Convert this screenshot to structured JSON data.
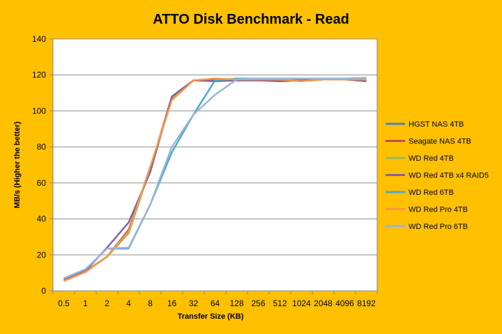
{
  "colors": {
    "background": "#FFC000",
    "plot_background": "#FFFFFF",
    "gridline": "#8C8C8C",
    "border": "#7F7F7F"
  },
  "chart_data": {
    "type": "line",
    "title": "ATTO Disk Benchmark - Read",
    "xlabel": "Transfer Size (KB)",
    "ylabel": "MB/s (Higher the better)",
    "ylim": [
      0,
      140
    ],
    "yticks": [
      0,
      20,
      40,
      60,
      80,
      100,
      120,
      140
    ],
    "grid": "horizontal",
    "legend_position": "right",
    "categories": [
      "0.5",
      "1",
      "2",
      "4",
      "8",
      "16",
      "32",
      "64",
      "128",
      "256",
      "512",
      "1024",
      "2048",
      "4096",
      "8192"
    ],
    "series": [
      {
        "name": "HGST NAS 4TB",
        "color": "#4F81BD",
        "values": [
          6,
          11,
          19,
          33,
          68,
          107,
          117,
          117,
          117,
          117,
          117,
          117,
          117.5,
          117.5,
          117.5
        ]
      },
      {
        "name": "Seagate NAS 4TB",
        "color": "#C0504D",
        "values": [
          5.5,
          10.5,
          19,
          34,
          68,
          108,
          117,
          116.5,
          117,
          117,
          116.5,
          117,
          117.5,
          117.5,
          117
        ]
      },
      {
        "name": "WD Red 4TB",
        "color": "#9BBB59",
        "values": [
          6,
          11,
          19,
          32,
          68,
          107,
          117,
          117.5,
          117.5,
          117.5,
          117.5,
          117.5,
          117.5,
          117.5,
          117.5
        ]
      },
      {
        "name": "WD Red 4TB x4 RAID5",
        "color": "#8064A2",
        "values": [
          6.5,
          11,
          24,
          38,
          66,
          108,
          117,
          117,
          117,
          117,
          117,
          117,
          117.5,
          117.5,
          116.5
        ]
      },
      {
        "name": "WD Red 6TB",
        "color": "#4BACC6",
        "values": [
          7,
          12,
          23.5,
          23.5,
          48,
          77,
          98,
          117,
          118,
          118,
          118,
          118,
          118,
          118,
          118
        ]
      },
      {
        "name": "WD Red Pro 4TB",
        "color": "#F79646",
        "values": [
          5.5,
          10.5,
          19,
          33,
          69,
          106,
          117,
          118,
          117.5,
          117.5,
          117.5,
          116.5,
          117.5,
          117.5,
          117.5
        ]
      },
      {
        "name": "WD Red Pro 6TB",
        "color": "#9CB3DA",
        "values": [
          7,
          12,
          23.5,
          24,
          48,
          80,
          98,
          109,
          117.5,
          118,
          118,
          118,
          118,
          118,
          118.5
        ]
      }
    ]
  }
}
